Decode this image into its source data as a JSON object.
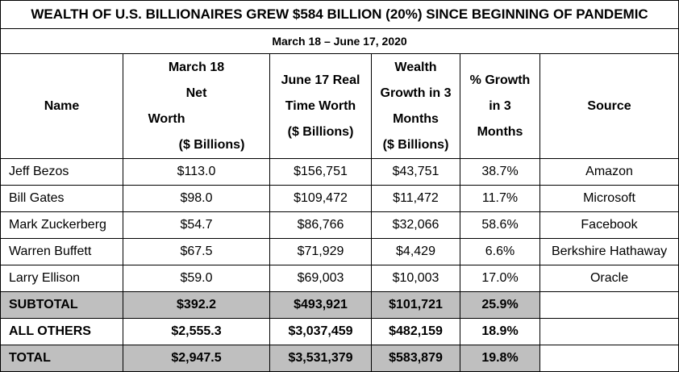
{
  "title": "WEALTH OF U.S. BILLIONAIRES GREW $584 BILLION (20%) SINCE BEGINNING OF PANDEMIC",
  "subtitle": "March 18 – June 17, 2020",
  "headers": {
    "name": "Name",
    "march": {
      "l1": "March 18",
      "l2": "Net",
      "l3": "Worth",
      "l4": "($ Billions)"
    },
    "june": {
      "l1": "June 17 Real",
      "l2": "Time Worth",
      "l3": "($ Billions)"
    },
    "growth": {
      "l1": "Wealth",
      "l2": "Growth in 3",
      "l3": "Months",
      "l4": "($ Billions)"
    },
    "pct": {
      "l1": "% Growth",
      "l2": "in 3",
      "l3": "Months"
    },
    "source": "Source"
  },
  "rows": [
    {
      "name": "Jeff Bezos",
      "march": "$113.0",
      "june": "$156,751",
      "growth": "$43,751",
      "pct": "38.7%",
      "source": "Amazon"
    },
    {
      "name": "Bill Gates",
      "march": "$98.0",
      "june": "$109,472",
      "growth": "$11,472",
      "pct": "11.7%",
      "source": "Microsoft"
    },
    {
      "name": "Mark Zuckerberg",
      "march": "$54.7",
      "june": "$86,766",
      "growth": "$32,066",
      "pct": "58.6%",
      "source": "Facebook"
    },
    {
      "name": "Warren Buffett",
      "march": "$67.5",
      "june": "$71,929",
      "growth": "$4,429",
      "pct": "6.6%",
      "source": "Berkshire Hathaway"
    },
    {
      "name": "Larry Ellison",
      "march": "$59.0",
      "june": "$69,003",
      "growth": "$10,003",
      "pct": "17.0%",
      "source": "Oracle"
    }
  ],
  "subtotal": {
    "name": "SUBTOTAL",
    "march": "$392.2",
    "june": "$493,921",
    "growth": "$101,721",
    "pct": "25.9%"
  },
  "all_others": {
    "name": "ALL OTHERS",
    "march": "$2,555.3",
    "june": "$3,037,459",
    "growth": "$482,159",
    "pct": "18.9%"
  },
  "total": {
    "name": "TOTAL",
    "march": "$2,947.5",
    "june": "$3,531,379",
    "growth": "$583,879",
    "pct": "19.8%"
  },
  "colors": {
    "summary_fill": "#bfbfbf",
    "border": "#000000"
  }
}
